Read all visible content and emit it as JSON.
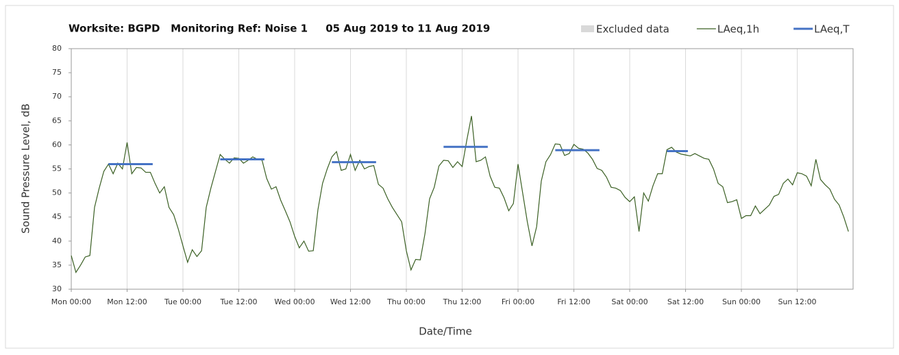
{
  "chart_data": {
    "type": "line",
    "title": "Worksite: BGPD   Monitoring Ref: Noise 1     05 Aug 2019 to 11 Aug 2019",
    "xlabel": "Date/Time",
    "ylabel": "Sound Pressure Level, dB",
    "xlim": [
      0,
      168
    ],
    "xticks": [
      {
        "value": 0,
        "label": "Mon 00:00"
      },
      {
        "value": 12,
        "label": "Mon 12:00"
      },
      {
        "value": 24,
        "label": "Tue 00:00"
      },
      {
        "value": 36,
        "label": "Tue 12:00"
      },
      {
        "value": 48,
        "label": "Wed 00:00"
      },
      {
        "value": 60,
        "label": "Wed 12:00"
      },
      {
        "value": 72,
        "label": "Thu 00:00"
      },
      {
        "value": 84,
        "label": "Thu 12:00"
      },
      {
        "value": 96,
        "label": "Fri 00:00"
      },
      {
        "value": 108,
        "label": "Fri 12:00"
      },
      {
        "value": 120,
        "label": "Sat 00:00"
      },
      {
        "value": 132,
        "label": "Sat 12:00"
      },
      {
        "value": 144,
        "label": "Sun 00:00"
      },
      {
        "value": 156,
        "label": "Sun 12:00"
      }
    ],
    "ylim": [
      30,
      80
    ],
    "yticks": [
      30,
      35,
      40,
      45,
      50,
      55,
      60,
      65,
      70,
      75,
      80
    ],
    "grid": "x",
    "legend": [
      {
        "name": "Excluded data",
        "color": "#d9d9d9"
      }
    ],
    "x": [
      0,
      1,
      2,
      3,
      4,
      5,
      6,
      7,
      8,
      9,
      10,
      11,
      12,
      13,
      14,
      15,
      16,
      17,
      18,
      19,
      20,
      21,
      22,
      23,
      24,
      25,
      26,
      27,
      28,
      29,
      30,
      31,
      32,
      33,
      34,
      35,
      36,
      37,
      38,
      39,
      40,
      41,
      42,
      43,
      44,
      45,
      46,
      47,
      48,
      49,
      50,
      51,
      52,
      53,
      54,
      55,
      56,
      57,
      58,
      59,
      60,
      61,
      62,
      63,
      64,
      65,
      66,
      67,
      68,
      69,
      70,
      71,
      72,
      73,
      74,
      75,
      76,
      77,
      78,
      79,
      80,
      81,
      82,
      83,
      84,
      85,
      86,
      87,
      88,
      89,
      90,
      91,
      92,
      93,
      94,
      95,
      96,
      97,
      98,
      99,
      100,
      101,
      102,
      103,
      104,
      105,
      106,
      107,
      108,
      109,
      110,
      111,
      112,
      113,
      114,
      115,
      116,
      117,
      118,
      119,
      120,
      121,
      122,
      123,
      124,
      125,
      126,
      127,
      128,
      129,
      130,
      131,
      132,
      133,
      134,
      135,
      136,
      137,
      138,
      139,
      140,
      141,
      142,
      143,
      144,
      145,
      146,
      147,
      148,
      149,
      150,
      151,
      152,
      153,
      154,
      155,
      156,
      157,
      158,
      159,
      160,
      161,
      162,
      163,
      164,
      165,
      166,
      167
    ],
    "series": [
      {
        "name": "LAeq,1h",
        "color": "#3a5f23",
        "values": [
          37,
          33.5,
          35,
          36.7,
          37,
          47,
          51,
          54.5,
          56,
          54,
          56.2,
          55,
          60.5,
          54,
          55.3,
          55.2,
          54.3,
          54.3,
          52,
          50,
          51.3,
          47,
          45.5,
          42.5,
          39,
          35.6,
          38.2,
          36.8,
          38,
          47,
          51,
          54.5,
          58,
          57,
          56.2,
          57.3,
          57.2,
          56.2,
          56.8,
          57.5,
          57,
          56.8,
          53,
          50.8,
          51.3,
          48.5,
          46.3,
          44,
          41,
          38.6,
          40,
          37.9,
          38,
          46.5,
          52,
          55,
          57.5,
          58.6,
          54.7,
          55,
          58,
          54.7,
          56.8,
          55,
          55.5,
          55.7,
          51.8,
          51,
          48.8,
          47,
          45.5,
          44,
          38,
          34,
          36.2,
          36.1,
          41.5,
          48.8,
          51.2,
          55.6,
          56.8,
          56.7,
          55.3,
          56.5,
          55.5,
          61,
          66,
          56.5,
          56.8,
          57.5,
          53.5,
          51.2,
          51,
          49,
          46.3,
          47.8,
          56,
          50,
          44,
          39,
          43,
          52.5,
          56.5,
          58,
          60.2,
          60.1,
          57.8,
          58.2,
          60.1,
          59.3,
          59.1,
          58.3,
          57,
          55.1,
          54.7,
          53.3,
          51.2,
          51,
          50.5,
          49.1,
          48.2,
          49.2,
          42,
          50,
          48.3,
          51.5,
          54,
          54,
          59,
          59.5,
          58.5,
          58.1,
          57.9,
          57.7,
          58.2,
          57.7,
          57.2,
          57,
          55,
          52,
          51.3,
          48,
          48.2,
          48.6,
          44.7,
          45.3,
          45.3,
          47.3,
          45.7,
          46.6,
          47.5,
          49.3,
          49.7,
          52,
          52.9,
          51.7,
          54.2,
          54,
          53.5,
          51.5,
          57,
          52.8,
          51.7,
          50.8,
          48.7,
          47.5,
          45,
          42
        ]
      },
      {
        "name": "LAeq,T",
        "color": "#4472c4",
        "segments": [
          {
            "x0": 8,
            "x1": 17.5,
            "value": 56
          },
          {
            "x0": 32,
            "x1": 41.5,
            "value": 57
          },
          {
            "x0": 56,
            "x1": 65.5,
            "value": 56.4
          },
          {
            "x0": 80,
            "x1": 89.5,
            "value": 59.6
          },
          {
            "x0": 104,
            "x1": 113.5,
            "value": 58.9
          },
          {
            "x0": 128,
            "x1": 132.5,
            "value": 58.7
          }
        ]
      }
    ]
  }
}
